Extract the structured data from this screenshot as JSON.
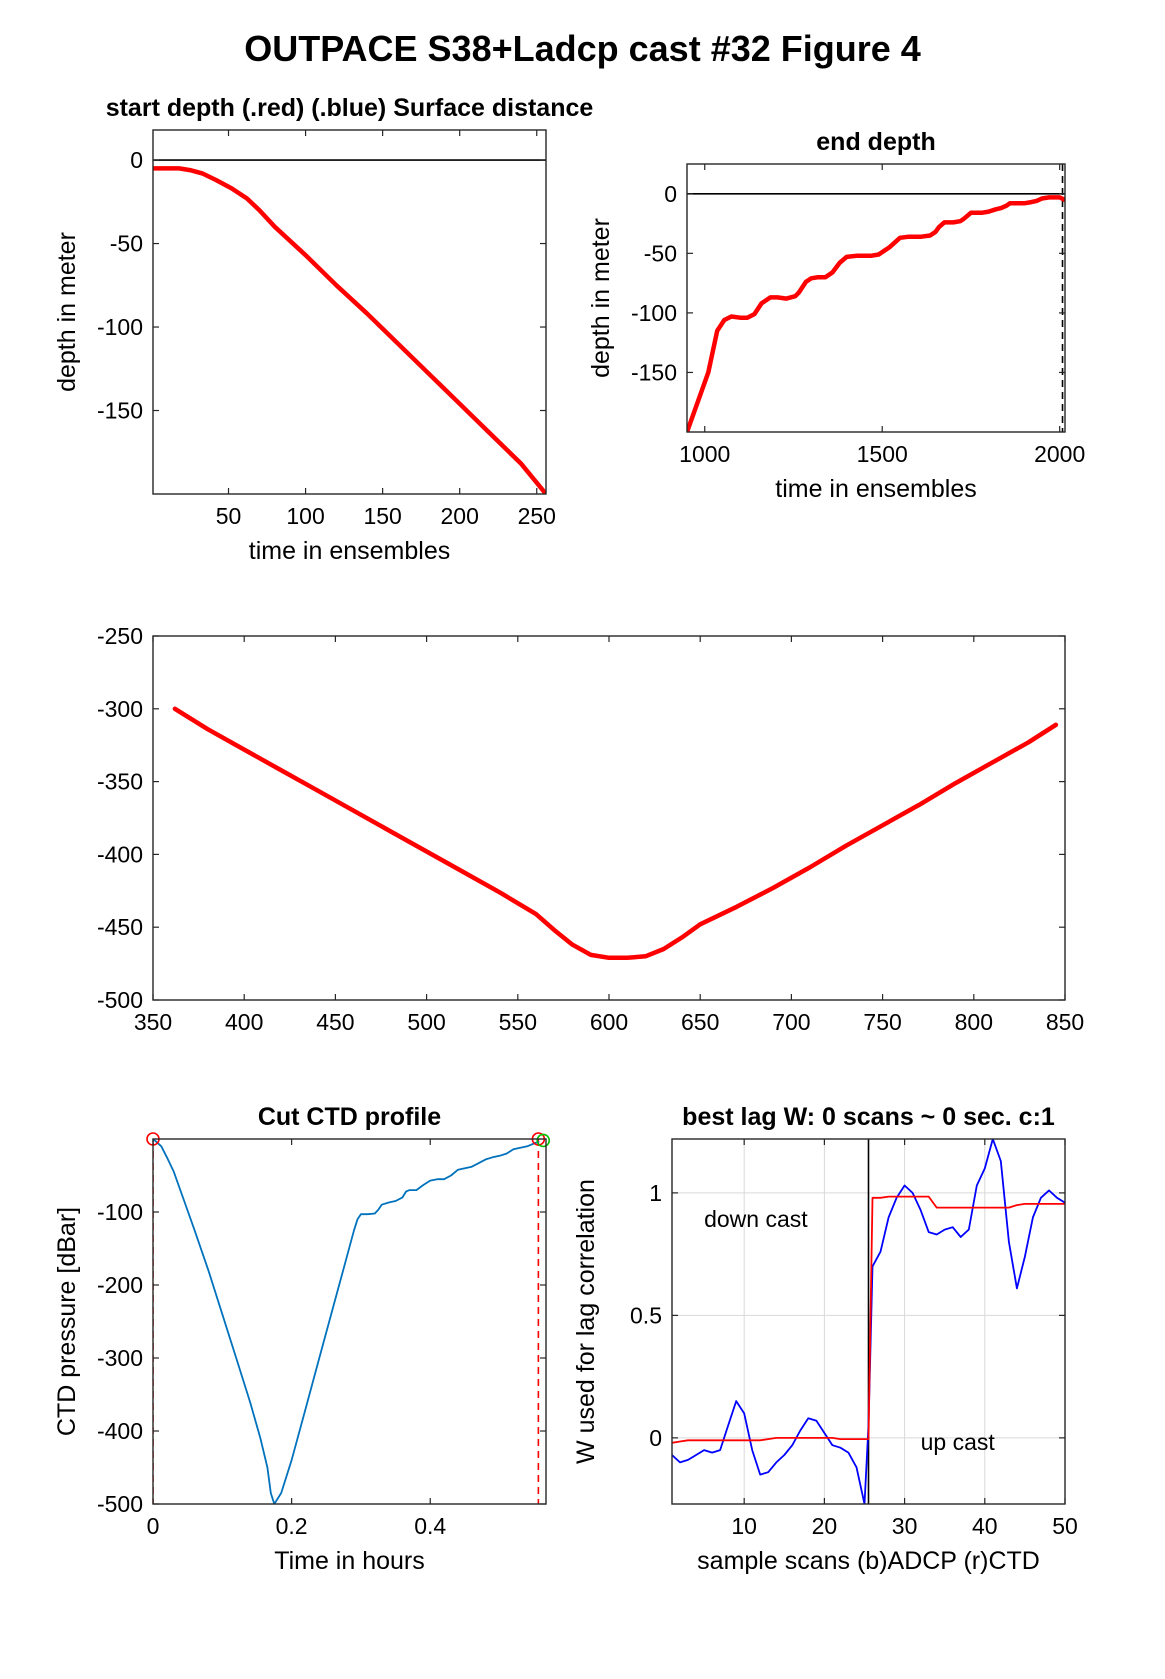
{
  "figure": {
    "title": "OUTPACE S38+Ladcp cast #32   Figure 4"
  },
  "colors": {
    "red": "#ff0000",
    "blue": "#0000ff",
    "ctd": "#0072bd",
    "green": "#00c000",
    "grid": "#d9d9d9",
    "axis": "#262626"
  },
  "chart_data": [
    {
      "id": "start-depth",
      "type": "line",
      "title": "start depth (.red) (.blue) Surface distance",
      "xlabel": "time in ensembles",
      "ylabel": "depth in meter",
      "xlim": [
        1,
        256
      ],
      "ylim": [
        -200,
        18
      ],
      "xticks": [
        50,
        100,
        150,
        200,
        250
      ],
      "yticks": [
        0,
        -50,
        -100,
        -150
      ],
      "grid": false,
      "reference_line": {
        "y": 0,
        "color": "#000000"
      },
      "series": [
        {
          "color": "#ff0000",
          "x": [
            1,
            10,
            18,
            25,
            33,
            42,
            52,
            62,
            70,
            80,
            100,
            120,
            140,
            160,
            180,
            200,
            220,
            240,
            256
          ],
          "y": [
            -5,
            -5,
            -5,
            -6,
            -8,
            -12,
            -17,
            -23,
            -30,
            -40,
            -57,
            -75,
            -92,
            -110,
            -128,
            -146,
            -164,
            -182,
            -200
          ]
        }
      ]
    },
    {
      "id": "end-depth",
      "type": "line",
      "title": "end depth",
      "xlabel": "time in ensembles",
      "ylabel": "depth in meter",
      "xlim": [
        950,
        2015
      ],
      "ylim": [
        -200,
        25
      ],
      "xticks": [
        1000,
        1500,
        2000
      ],
      "yticks": [
        0,
        -50,
        -100,
        -150
      ],
      "grid": false,
      "reference_line": {
        "y": 0,
        "color": "#000000"
      },
      "vline": {
        "x": 2008,
        "color": "#000000",
        "dashed": true
      },
      "series": [
        {
          "color": "#ff0000",
          "x": [
            950,
            1010,
            1035,
            1055,
            1075,
            1100,
            1120,
            1140,
            1160,
            1185,
            1205,
            1230,
            1255,
            1265,
            1285,
            1300,
            1320,
            1340,
            1360,
            1380,
            1400,
            1430,
            1455,
            1470,
            1490,
            1500,
            1520,
            1550,
            1575,
            1590,
            1610,
            1635,
            1650,
            1660,
            1675,
            1700,
            1720,
            1730,
            1750,
            1765,
            1780,
            1800,
            1820,
            1835,
            1850,
            1860,
            1880,
            1900,
            1920,
            1935,
            1950,
            1970,
            1985,
            2000,
            2013
          ],
          "y": [
            -200,
            -150,
            -115,
            -106,
            -103,
            -104,
            -104,
            -101,
            -92,
            -87,
            -87,
            -88,
            -86,
            -83,
            -74,
            -71,
            -70,
            -70,
            -66,
            -58,
            -53,
            -52,
            -52,
            -52,
            -51,
            -49,
            -45,
            -37,
            -36,
            -36,
            -36,
            -35,
            -32,
            -28,
            -24,
            -24,
            -23,
            -21,
            -16,
            -16,
            -16,
            -15,
            -13,
            -12,
            -10,
            -8,
            -8,
            -8,
            -7,
            -6,
            -4,
            -3,
            -3,
            -3,
            -5
          ]
        }
      ]
    },
    {
      "id": "depth-profile",
      "type": "line",
      "title": "",
      "xlabel": "",
      "ylabel": "",
      "xlim": [
        350,
        850
      ],
      "ylim": [
        -500,
        -250
      ],
      "xticks": [
        350,
        400,
        450,
        500,
        550,
        600,
        650,
        700,
        750,
        800,
        850
      ],
      "yticks": [
        -250,
        -300,
        -350,
        -400,
        -450,
        -500
      ],
      "grid": false,
      "series": [
        {
          "color": "#ff0000",
          "x": [
            362,
            380,
            400,
            420,
            440,
            460,
            480,
            500,
            520,
            540,
            560,
            570,
            580,
            590,
            600,
            610,
            620,
            630,
            640,
            650,
            670,
            690,
            710,
            730,
            750,
            770,
            790,
            810,
            830,
            845
          ],
          "y": [
            -300,
            -314,
            -328,
            -342,
            -356,
            -370,
            -384,
            -398,
            -412,
            -426,
            -441,
            -452,
            -462,
            -469,
            -471,
            -471,
            -470,
            -465,
            -457,
            -448,
            -436,
            -423,
            -409,
            -394,
            -380,
            -366,
            -351,
            -337,
            -323,
            -311
          ]
        }
      ]
    },
    {
      "id": "cut-ctd-profile",
      "type": "line",
      "title": "Cut CTD profile",
      "xlabel": "Time in hours",
      "ylabel": "CTD pressure [dBar]",
      "xlim": [
        0,
        0.567
      ],
      "ylim": [
        -500,
        0
      ],
      "xticks": [
        0,
        0.2,
        0.4
      ],
      "yticks": [
        -100,
        -200,
        -300,
        -400,
        -500
      ],
      "grid": false,
      "markers": [
        {
          "x": 0,
          "y": 0,
          "color": "#ff0000"
        },
        {
          "x": 0.556,
          "y": 0,
          "color": "#ff0000"
        },
        {
          "x": 0.563,
          "y": -2,
          "color": "#00c000"
        }
      ],
      "vlines": [
        {
          "x": 0,
          "color": "#ff0000",
          "dashed": true
        },
        {
          "x": 0.556,
          "color": "#ff0000",
          "dashed": true
        }
      ],
      "series": [
        {
          "color": "#0072bd",
          "x": [
            0,
            0.005,
            0.012,
            0.02,
            0.03,
            0.045,
            0.06,
            0.08,
            0.1,
            0.12,
            0.14,
            0.155,
            0.165,
            0.17,
            0.175,
            0.185,
            0.2,
            0.22,
            0.24,
            0.26,
            0.28,
            0.29,
            0.295,
            0.3,
            0.31,
            0.32,
            0.325,
            0.33,
            0.34,
            0.35,
            0.36,
            0.365,
            0.37,
            0.38,
            0.39,
            0.4,
            0.41,
            0.42,
            0.43,
            0.44,
            0.45,
            0.46,
            0.47,
            0.48,
            0.49,
            0.5,
            0.51,
            0.52,
            0.53,
            0.54,
            0.55,
            0.556
          ],
          "y": [
            0,
            -4,
            -10,
            -25,
            -45,
            -85,
            -125,
            -180,
            -240,
            -300,
            -360,
            -410,
            -450,
            -485,
            -500,
            -485,
            -440,
            -370,
            -300,
            -230,
            -160,
            -125,
            -110,
            -103,
            -103,
            -102,
            -97,
            -90,
            -87,
            -85,
            -80,
            -72,
            -70,
            -70,
            -63,
            -57,
            -55,
            -55,
            -50,
            -42,
            -40,
            -38,
            -33,
            -28,
            -25,
            -23,
            -20,
            -14,
            -12,
            -10,
            -6,
            -4
          ]
        }
      ]
    },
    {
      "id": "best-lag",
      "type": "line",
      "title": "best lag W: 0 scans ~ 0 sec.  c:1",
      "xlabel": "sample scans (b)ADCP (r)CTD",
      "ylabel": "W used for lag correlation",
      "xlim": [
        1,
        50
      ],
      "ylim": [
        -0.27,
        1.22
      ],
      "xticks": [
        10,
        20,
        30,
        40,
        50
      ],
      "yticks": [
        0,
        0.5,
        1
      ],
      "grid": true,
      "vline": {
        "x": 25.5,
        "color": "#000000",
        "dashed": false
      },
      "annotations": [
        {
          "text": "down cast",
          "x": 5,
          "y": 0.86
        },
        {
          "text": "up cast",
          "x": 32,
          "y": -0.05
        }
      ],
      "series": [
        {
          "name": "ADCP",
          "color": "#0000ff",
          "x": [
            1,
            2,
            3,
            4,
            5,
            6,
            7,
            8,
            9,
            10,
            11,
            12,
            13,
            14,
            15,
            16,
            17,
            18,
            19,
            20,
            21,
            22,
            23,
            24,
            25,
            25.5,
            26,
            27,
            28,
            29,
            30,
            31,
            32,
            33,
            34,
            35,
            36,
            37,
            38,
            39,
            40,
            41,
            42,
            43,
            44,
            45,
            46,
            47,
            48,
            49,
            50
          ],
          "y": [
            -0.07,
            -0.1,
            -0.09,
            -0.07,
            -0.05,
            -0.06,
            -0.05,
            0.05,
            0.15,
            0.1,
            -0.05,
            -0.15,
            -0.14,
            -0.1,
            -0.07,
            -0.03,
            0.03,
            0.08,
            0.07,
            0.02,
            -0.03,
            -0.04,
            -0.06,
            -0.12,
            -0.27,
            0.05,
            0.7,
            0.76,
            0.9,
            0.98,
            1.03,
            1.0,
            0.93,
            0.84,
            0.83,
            0.85,
            0.86,
            0.82,
            0.85,
            1.03,
            1.1,
            1.22,
            1.13,
            0.8,
            0.61,
            0.74,
            0.9,
            0.98,
            1.01,
            0.98,
            0.96
          ]
        },
        {
          "name": "CTD",
          "color": "#ff0000",
          "x": [
            1,
            2,
            3,
            4,
            5,
            6,
            7,
            8,
            9,
            10,
            11,
            12,
            13,
            14,
            15,
            16,
            17,
            18,
            19,
            20,
            21,
            22,
            23,
            24,
            25,
            25.5,
            26,
            27,
            28,
            29,
            30,
            31,
            32,
            33,
            34,
            35,
            36,
            37,
            38,
            39,
            40,
            41,
            42,
            43,
            44,
            45,
            46,
            47,
            48,
            49,
            50
          ],
          "y": [
            -0.02,
            -0.015,
            -0.01,
            -0.01,
            -0.01,
            -0.01,
            -0.01,
            -0.01,
            -0.01,
            -0.01,
            -0.01,
            -0.01,
            -0.005,
            0.0,
            0.0,
            0.0,
            0.0,
            0.0,
            0.0,
            0.0,
            0.0,
            -0.005,
            -0.005,
            -0.005,
            -0.005,
            -0.005,
            0.98,
            0.98,
            0.985,
            0.985,
            0.985,
            0.985,
            0.985,
            0.985,
            0.94,
            0.94,
            0.94,
            0.94,
            0.94,
            0.94,
            0.94,
            0.94,
            0.94,
            0.94,
            0.95,
            0.955,
            0.955,
            0.955,
            0.955,
            0.955,
            0.955
          ]
        }
      ]
    }
  ]
}
